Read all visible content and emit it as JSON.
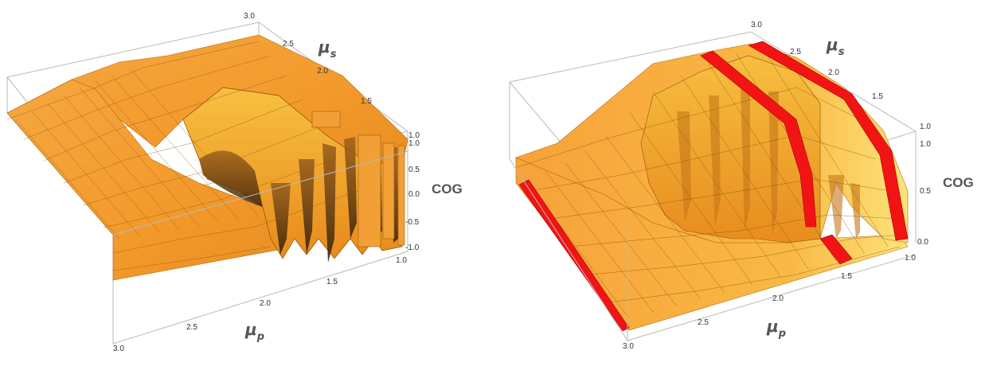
{
  "chart_data": [
    {
      "type": "surface3d",
      "panel": "left",
      "axis_x": {
        "label": "μ",
        "label_sub": "p",
        "ticks": [
          "3.0",
          "2.5",
          "2.0",
          "1.5",
          "1.0"
        ]
      },
      "axis_y": {
        "label": "μ",
        "label_sub": "s",
        "ticks": [
          "3.0",
          "2.5",
          "2.0",
          "1.5",
          "1.0"
        ]
      },
      "axis_z": {
        "label": "COG",
        "ticks": [
          "1.0",
          "0.5",
          "0.0",
          "-0.5",
          "-1.0"
        ],
        "range": [
          -1.0,
          1.0
        ]
      },
      "surface_color": "#f5a02a",
      "highlight_band_color": null
    },
    {
      "type": "surface3d",
      "panel": "right",
      "axis_x": {
        "label": "μ",
        "label_sub": "p",
        "ticks": [
          "3.0",
          "2.5",
          "2.0",
          "1.5",
          "1.0"
        ]
      },
      "axis_y": {
        "label": "μ",
        "label_sub": "s",
        "ticks": [
          "3.0",
          "2.5",
          "2.0",
          "1.5",
          "1.0"
        ]
      },
      "axis_z": {
        "label": "COG",
        "ticks": [
          "1.0",
          "0.5",
          "0.0"
        ],
        "range": [
          0.0,
          1.0
        ]
      },
      "surface_color": "#f5a02a",
      "highlight_band_color": "#f21414"
    }
  ]
}
